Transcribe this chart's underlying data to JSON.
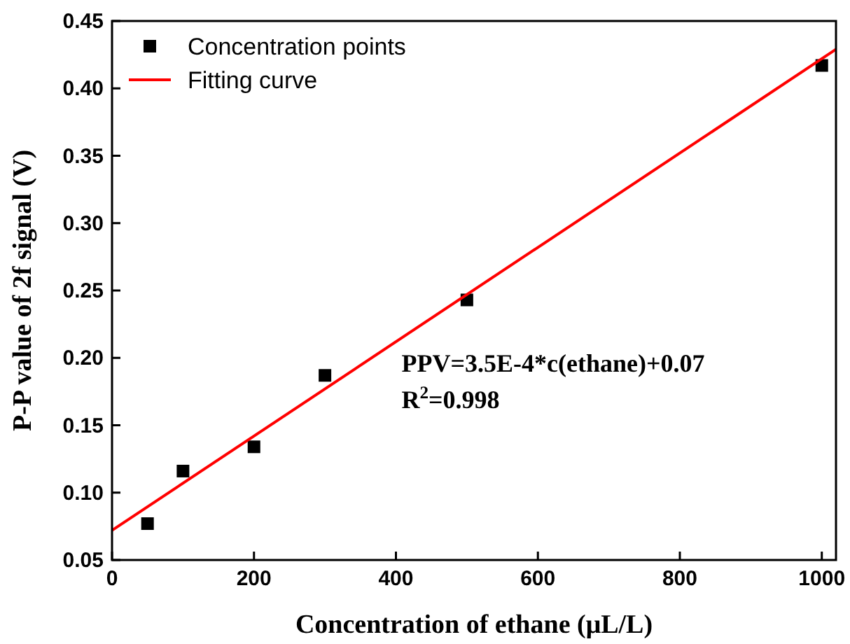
{
  "chart_data": {
    "type": "scatter",
    "xlabel": "Concentration of ethane (μL/L)",
    "ylabel": "P-P value of 2f signal (V)",
    "xlim": [
      0,
      1020
    ],
    "ylim": [
      0.05,
      0.45
    ],
    "xticks": [
      0,
      200,
      400,
      600,
      800,
      1000
    ],
    "yticks": [
      {
        "value": 0.05,
        "label": "0.05"
      },
      {
        "value": 0.1,
        "label": "0.10"
      },
      {
        "value": 0.15,
        "label": "0.15"
      },
      {
        "value": 0.2,
        "label": "0.20"
      },
      {
        "value": 0.25,
        "label": "0.25"
      },
      {
        "value": 0.3,
        "label": "0.30"
      },
      {
        "value": 0.35,
        "label": "0.35"
      },
      {
        "value": 0.4,
        "label": "0.40"
      },
      {
        "value": 0.45,
        "label": "0.45"
      }
    ],
    "series": [
      {
        "name": "Concentration points",
        "color": "#000000",
        "marker": "square",
        "x": [
          50,
          100,
          200,
          300,
          500,
          1000
        ],
        "values": [
          0.077,
          0.116,
          0.134,
          0.187,
          0.243,
          0.417
        ]
      },
      {
        "name": "Fitting curve",
        "type": "line",
        "color": "#ff0000",
        "marker": "none",
        "x": [
          0,
          1020
        ],
        "values": [
          0.072,
          0.429
        ]
      }
    ],
    "legend": "top left",
    "grid": false,
    "annotations": [
      "PPV=3.5E-4*c(ethane)+0.07",
      "R$^{2}$=0.998"
    ]
  }
}
